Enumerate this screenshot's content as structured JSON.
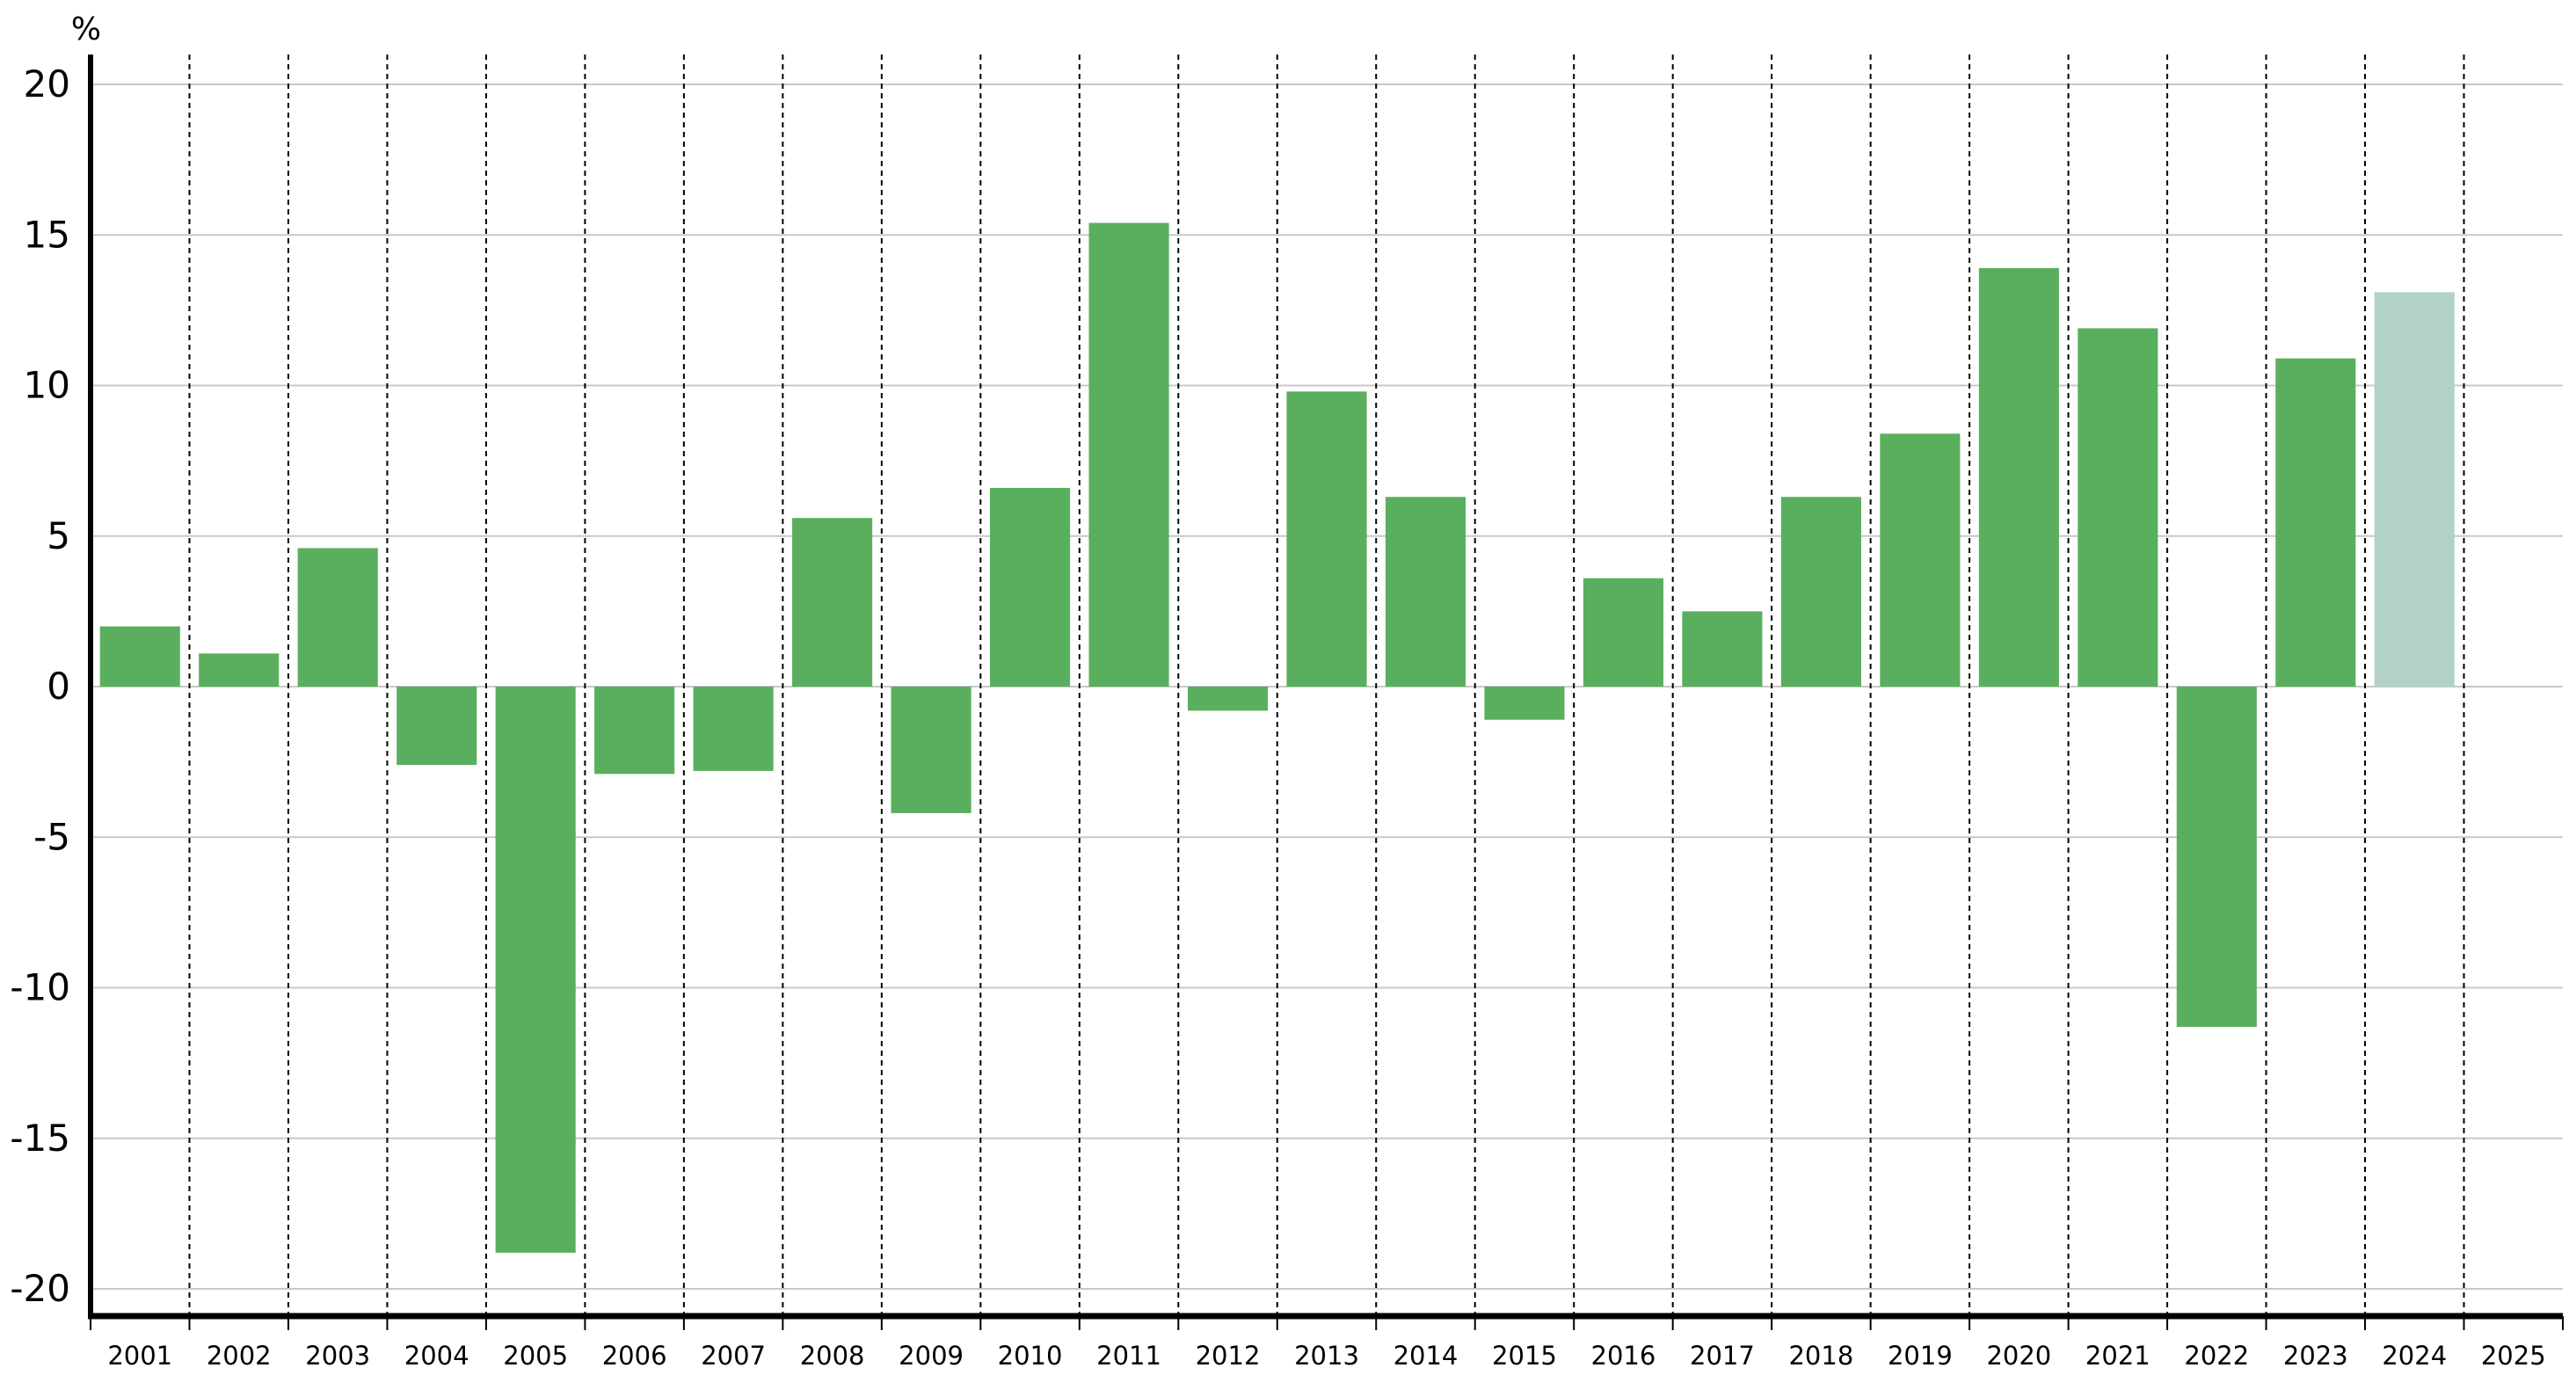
{
  "chart_data": {
    "type": "bar",
    "unit_label": "%",
    "categories": [
      "2001",
      "2002",
      "2003",
      "2004",
      "2005",
      "2006",
      "2007",
      "2008",
      "2009",
      "2010",
      "2011",
      "2012",
      "2013",
      "2014",
      "2015",
      "2016",
      "2017",
      "2018",
      "2019",
      "2020",
      "2021",
      "2022",
      "2023",
      "2024",
      "2025"
    ],
    "values": [
      2.0,
      1.1,
      4.6,
      -2.6,
      -18.8,
      -2.9,
      -2.8,
      5.6,
      -4.2,
      6.6,
      15.4,
      -0.8,
      9.8,
      6.3,
      -1.1,
      3.6,
      2.5,
      6.3,
      8.4,
      13.9,
      11.9,
      -11.3,
      10.9,
      13.1,
      null
    ],
    "bar_styles": [
      "actual",
      "actual",
      "actual",
      "actual",
      "actual",
      "actual",
      "actual",
      "actual",
      "actual",
      "actual",
      "actual",
      "actual",
      "actual",
      "actual",
      "actual",
      "actual",
      "actual",
      "actual",
      "actual",
      "actual",
      "actual",
      "actual",
      "actual",
      "projected",
      "projected"
    ],
    "colors": {
      "actual": "#5aaf5e",
      "projected": "#b2d1c8"
    },
    "ylim": [
      -21,
      21
    ],
    "yticks": [
      20,
      15,
      10,
      5,
      0,
      -5,
      -10,
      -15,
      -20
    ],
    "title": "",
    "xlabel": "",
    "ylabel": "",
    "grid": {
      "horizontal": true,
      "vertical_dashed": true
    },
    "legend": "none"
  }
}
